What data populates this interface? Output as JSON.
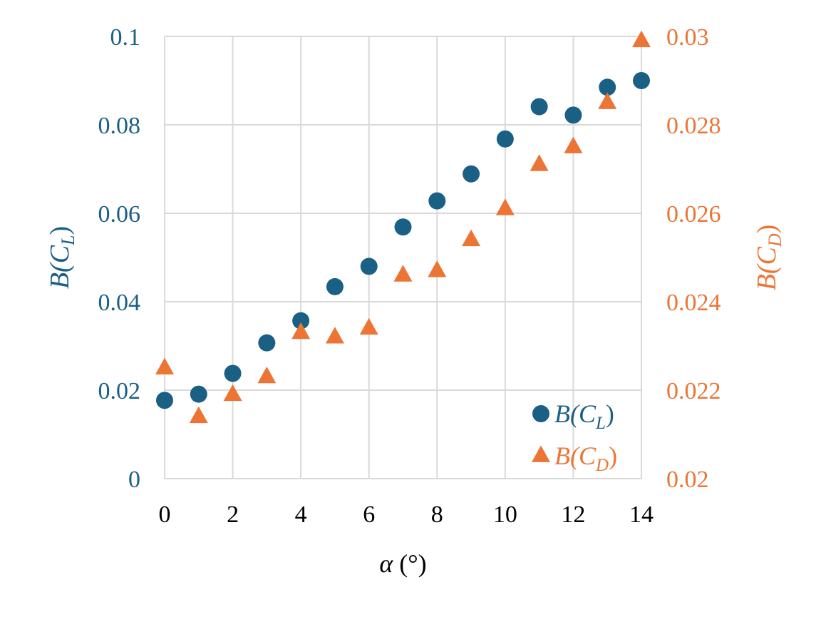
{
  "chart_data": {
    "type": "scatter",
    "x_axis": {
      "label": "α (°)",
      "range": [
        0,
        14
      ],
      "ticks": [
        "0",
        "2",
        "4",
        "6",
        "8",
        "10",
        "12",
        "14"
      ],
      "tick_values": [
        0,
        2,
        4,
        6,
        8,
        10,
        12,
        14
      ]
    },
    "y_axis_left": {
      "label_base": "B(C",
      "label_sub": "L",
      "label_end": ")",
      "range": [
        0,
        0.1
      ],
      "ticks": [
        "0",
        "0.02",
        "0.04",
        "0.06",
        "0.08",
        "0.1"
      ],
      "tick_values": [
        0,
        0.02,
        0.04,
        0.06,
        0.08,
        0.1
      ]
    },
    "y_axis_right": {
      "label_base": "B(C",
      "label_sub": "D",
      "label_end": ")",
      "range": [
        0.02,
        0.03
      ],
      "ticks": [
        "0.02",
        "0.022",
        "0.024",
        "0.026",
        "0.028",
        "0.03"
      ],
      "tick_values": [
        0.02,
        0.022,
        0.024,
        0.026,
        0.028,
        0.03
      ]
    },
    "grid": true,
    "legend_position": "bottom-right",
    "series": [
      {
        "name": "B(C_L)",
        "legend_base": "B(C",
        "legend_sub": "L",
        "legend_end": ")",
        "axis": "left",
        "marker": "circle",
        "color": "#1a5f84",
        "x": [
          0,
          1,
          2,
          3,
          4,
          5,
          6,
          7,
          8,
          9,
          10,
          11,
          12,
          13,
          14
        ],
        "y": [
          0.0177,
          0.0191,
          0.0238,
          0.0307,
          0.0357,
          0.0434,
          0.048,
          0.0569,
          0.0628,
          0.0689,
          0.0768,
          0.0841,
          0.0822,
          0.0885,
          0.09
        ]
      },
      {
        "name": "B(C_D)",
        "legend_base": "B(C",
        "legend_sub": "D",
        "legend_end": ")",
        "axis": "right",
        "marker": "triangle",
        "color": "#ec7535",
        "x": [
          0,
          1,
          2,
          3,
          4,
          5,
          6,
          7,
          8,
          9,
          10,
          11,
          12,
          13,
          14
        ],
        "y": [
          0.0225,
          0.0214,
          0.0219,
          0.0223,
          0.0233,
          0.0232,
          0.0234,
          0.0246,
          0.0247,
          0.0254,
          0.0261,
          0.0271,
          0.0275,
          0.0285,
          0.0299
        ]
      }
    ]
  },
  "colors": {
    "left_axis": "#1a5f84",
    "right_axis": "#ec7535",
    "grid": "#d9d9d9",
    "axis_text": "#000000"
  }
}
